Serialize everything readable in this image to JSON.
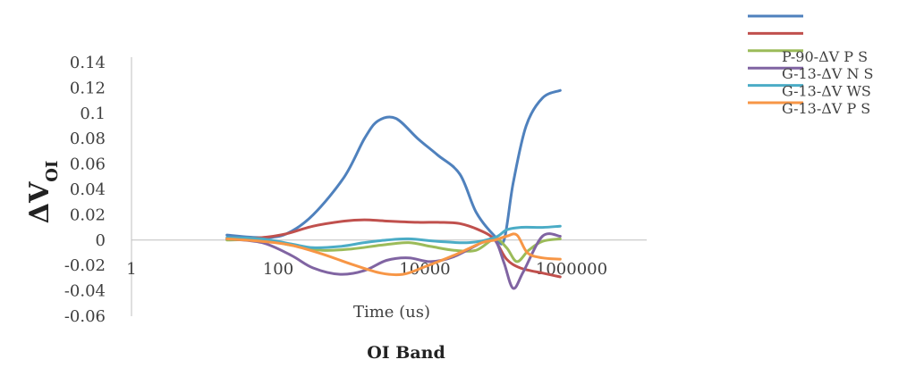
{
  "chart_data": {
    "type": "line",
    "title": "",
    "caption": "OI Band",
    "xlabel": "Time (us)",
    "ylabel": "ΔV",
    "ylabel_sub": "OI",
    "x_scale": "log",
    "xlim": [
      1,
      10000000
    ],
    "ylim": [
      -0.06,
      0.14
    ],
    "x_ticks": [
      1,
      100,
      10000,
      1000000
    ],
    "x_tick_labels": [
      "1",
      "100",
      "10000",
      "1000000"
    ],
    "y_ticks": [
      -0.06,
      -0.04,
      -0.02,
      0,
      0.02,
      0.04,
      0.06,
      0.08,
      0.1,
      0.12,
      0.14
    ],
    "y_tick_labels": [
      "-0.06",
      "-0.04",
      "-0.02",
      "0",
      "0.02",
      "0.04",
      "0.06",
      "0.08",
      "0.1",
      "0.12",
      "0.14"
    ],
    "grid": false,
    "legend_position": "top-right",
    "series": [
      {
        "name": "",
        "color": "#4f81bd",
        "x": [
          20,
          60,
          130,
          300,
          800,
          1500,
          2300,
          4000,
          8000,
          15000,
          30000,
          50000,
          90000,
          120000,
          160000,
          240000,
          400000,
          700000
        ],
        "y": [
          0.004,
          0.002,
          0.005,
          0.02,
          0.05,
          0.08,
          0.094,
          0.096,
          0.08,
          0.067,
          0.052,
          0.022,
          0.003,
          0.0,
          0.045,
          0.09,
          0.112,
          0.118
        ]
      },
      {
        "name": "",
        "color": "#c0504d",
        "x": [
          20,
          60,
          130,
          300,
          800,
          1500,
          3000,
          8000,
          15000,
          30000,
          60000,
          90000,
          130000,
          200000,
          400000,
          700000
        ],
        "y": [
          0.001,
          0.002,
          0.005,
          0.011,
          0.015,
          0.016,
          0.015,
          0.014,
          0.014,
          0.013,
          0.007,
          0.0,
          -0.015,
          -0.022,
          -0.026,
          -0.029
        ]
      },
      {
        "name": "P-90-ΔV P S",
        "color": "#9bbb59",
        "x": [
          20,
          60,
          150,
          400,
          1000,
          2500,
          6000,
          12000,
          25000,
          50000,
          90000,
          130000,
          180000,
          260000,
          400000,
          700000
        ],
        "y": [
          0.0,
          0.0,
          -0.004,
          -0.008,
          -0.007,
          -0.004,
          -0.002,
          -0.005,
          -0.008,
          -0.008,
          0.001,
          -0.006,
          -0.017,
          -0.008,
          -0.001,
          0.001
        ]
      },
      {
        "name": "G-13-ΔV N S",
        "color": "#8064a2",
        "x": [
          20,
          60,
          150,
          300,
          700,
          1500,
          3000,
          6000,
          12000,
          25000,
          60000,
          90000,
          120000,
          160000,
          220000,
          400000,
          700000
        ],
        "y": [
          0.001,
          -0.002,
          -0.012,
          -0.022,
          -0.027,
          -0.024,
          -0.016,
          -0.014,
          -0.017,
          -0.013,
          -0.002,
          0.0,
          -0.018,
          -0.038,
          -0.025,
          0.003,
          0.003
        ]
      },
      {
        "name": "G-13-ΔV WS",
        "color": "#4bacc6",
        "x": [
          20,
          60,
          150,
          300,
          700,
          1500,
          3000,
          6000,
          15000,
          40000,
          90000,
          130000,
          200000,
          400000,
          700000
        ],
        "y": [
          0.002,
          0.001,
          -0.003,
          -0.006,
          -0.005,
          -0.002,
          0.0,
          0.001,
          -0.001,
          -0.002,
          0.002,
          0.008,
          0.01,
          0.01,
          0.011
        ]
      },
      {
        "name": "G-13-ΔV P S",
        "color": "#f79646",
        "x": [
          20,
          60,
          150,
          400,
          1000,
          2500,
          5000,
          10000,
          25000,
          60000,
          90000,
          130000,
          180000,
          250000,
          400000,
          700000
        ],
        "y": [
          0.001,
          -0.001,
          -0.004,
          -0.011,
          -0.019,
          -0.026,
          -0.027,
          -0.021,
          -0.012,
          -0.002,
          0.0,
          0.003,
          0.004,
          -0.01,
          -0.014,
          -0.015
        ]
      }
    ]
  }
}
